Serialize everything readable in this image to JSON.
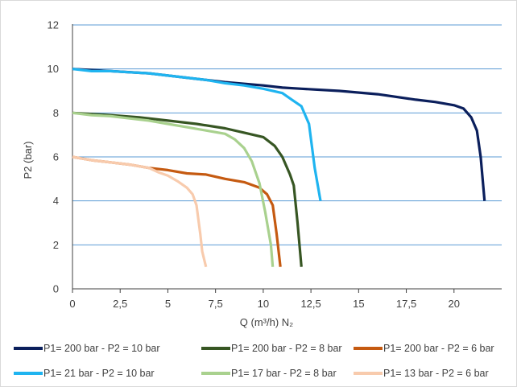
{
  "chart_data": {
    "type": "line",
    "xlabel": "Q (m³/h) N₂",
    "ylabel": "P2 (bar)",
    "xlim": [
      0,
      22.5
    ],
    "ylim": [
      0,
      12
    ],
    "x_ticks": [
      "0",
      "2,5",
      "5",
      "7,5",
      "10",
      "12,5",
      "15",
      "17,5",
      "20"
    ],
    "y_ticks": [
      "0",
      "2",
      "4",
      "6",
      "8",
      "10",
      "12"
    ],
    "grid": "horizontal",
    "legend_position": "bottom",
    "series": [
      {
        "name": "P1= 200 bar - P2 = 10 bar",
        "color": "#0b1f5c",
        "points": [
          [
            0,
            10
          ],
          [
            2,
            9.9
          ],
          [
            4,
            9.8
          ],
          [
            6,
            9.6
          ],
          [
            8,
            9.4
          ],
          [
            10,
            9.25
          ],
          [
            11,
            9.15
          ],
          [
            12,
            9.1
          ],
          [
            14,
            9.0
          ],
          [
            16,
            8.85
          ],
          [
            18,
            8.6
          ],
          [
            19,
            8.5
          ],
          [
            20,
            8.35
          ],
          [
            20.5,
            8.2
          ],
          [
            20.9,
            7.8
          ],
          [
            21.2,
            7.2
          ],
          [
            21.4,
            6.0
          ],
          [
            21.6,
            4.0
          ]
        ]
      },
      {
        "name": "P1= 200 bar - P2 = 8 bar",
        "color": "#375623",
        "points": [
          [
            0,
            8
          ],
          [
            1,
            7.95
          ],
          [
            2,
            7.9
          ],
          [
            3.5,
            7.8
          ],
          [
            5,
            7.65
          ],
          [
            6.5,
            7.5
          ],
          [
            8,
            7.3
          ],
          [
            9,
            7.1
          ],
          [
            10,
            6.9
          ],
          [
            10.6,
            6.5
          ],
          [
            11,
            6.0
          ],
          [
            11.4,
            5.2
          ],
          [
            11.6,
            4.7
          ],
          [
            11.8,
            3.0
          ],
          [
            12.0,
            1.0
          ]
        ]
      },
      {
        "name": "P1= 200 bar - P2 = 6 bar",
        "color": "#c55a11",
        "points": [
          [
            0,
            6
          ],
          [
            1,
            5.85
          ],
          [
            2,
            5.75
          ],
          [
            3,
            5.65
          ],
          [
            4,
            5.5
          ],
          [
            5,
            5.4
          ],
          [
            6,
            5.25
          ],
          [
            7,
            5.2
          ],
          [
            8,
            5.0
          ],
          [
            9,
            4.85
          ],
          [
            9.8,
            4.6
          ],
          [
            10.2,
            4.3
          ],
          [
            10.5,
            3.8
          ],
          [
            10.7,
            2.5
          ],
          [
            10.9,
            1.0
          ]
        ]
      },
      {
        "name": "P1= 21 bar - P2 = 10 bar",
        "color": "#1fb4f0",
        "points": [
          [
            0,
            10
          ],
          [
            1,
            9.9
          ],
          [
            2,
            9.9
          ],
          [
            3,
            9.85
          ],
          [
            4,
            9.8
          ],
          [
            5,
            9.7
          ],
          [
            6,
            9.6
          ],
          [
            7,
            9.5
          ],
          [
            8,
            9.35
          ],
          [
            9,
            9.25
          ],
          [
            10,
            9.1
          ],
          [
            11,
            8.9
          ],
          [
            11.5,
            8.6
          ],
          [
            12,
            8.3
          ],
          [
            12.4,
            7.5
          ],
          [
            12.7,
            5.5
          ],
          [
            13,
            4.0
          ]
        ]
      },
      {
        "name": "P1= 17 bar - P2 = 8 bar",
        "color": "#a9d18e",
        "points": [
          [
            0,
            8
          ],
          [
            1,
            7.9
          ],
          [
            2,
            7.85
          ],
          [
            3,
            7.75
          ],
          [
            4,
            7.65
          ],
          [
            5,
            7.5
          ],
          [
            6,
            7.35
          ],
          [
            7,
            7.2
          ],
          [
            8,
            7.05
          ],
          [
            8.5,
            6.8
          ],
          [
            9,
            6.4
          ],
          [
            9.4,
            5.8
          ],
          [
            9.8,
            4.8
          ],
          [
            10.1,
            3.5
          ],
          [
            10.4,
            2.0
          ],
          [
            10.5,
            1.0
          ]
        ]
      },
      {
        "name": "P1= 13 bar - P2 = 6 bar",
        "color": "#f8cbad",
        "points": [
          [
            0,
            6
          ],
          [
            1,
            5.85
          ],
          [
            2,
            5.75
          ],
          [
            3,
            5.65
          ],
          [
            4,
            5.5
          ],
          [
            4.5,
            5.3
          ],
          [
            5,
            5.15
          ],
          [
            5.5,
            4.9
          ],
          [
            6,
            4.6
          ],
          [
            6.3,
            4.3
          ],
          [
            6.5,
            3.8
          ],
          [
            6.7,
            2.5
          ],
          [
            6.8,
            1.7
          ],
          [
            7.0,
            1.0
          ]
        ]
      }
    ]
  }
}
